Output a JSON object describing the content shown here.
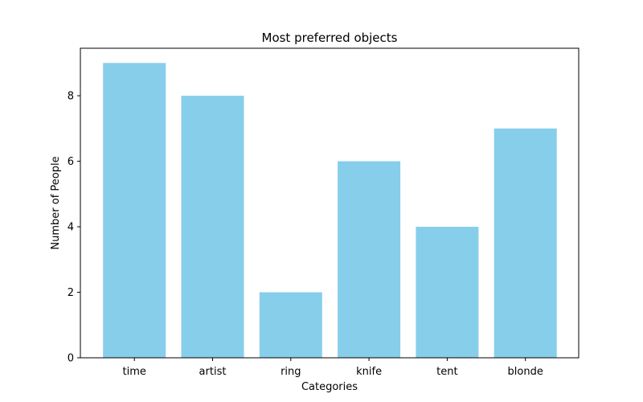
{
  "chart_data": {
    "type": "bar",
    "title": "Most preferred objects",
    "xlabel": "Categories",
    "ylabel": "Number of People",
    "categories": [
      "time",
      "artist",
      "ring",
      "knife",
      "tent",
      "blonde"
    ],
    "values": [
      9,
      8,
      2,
      6,
      4,
      7
    ],
    "ylim": [
      0,
      9.45
    ],
    "yticks": [
      0,
      2,
      4,
      6,
      8
    ],
    "bar_color": "#87ceeb",
    "grid": false,
    "legend": "none"
  }
}
